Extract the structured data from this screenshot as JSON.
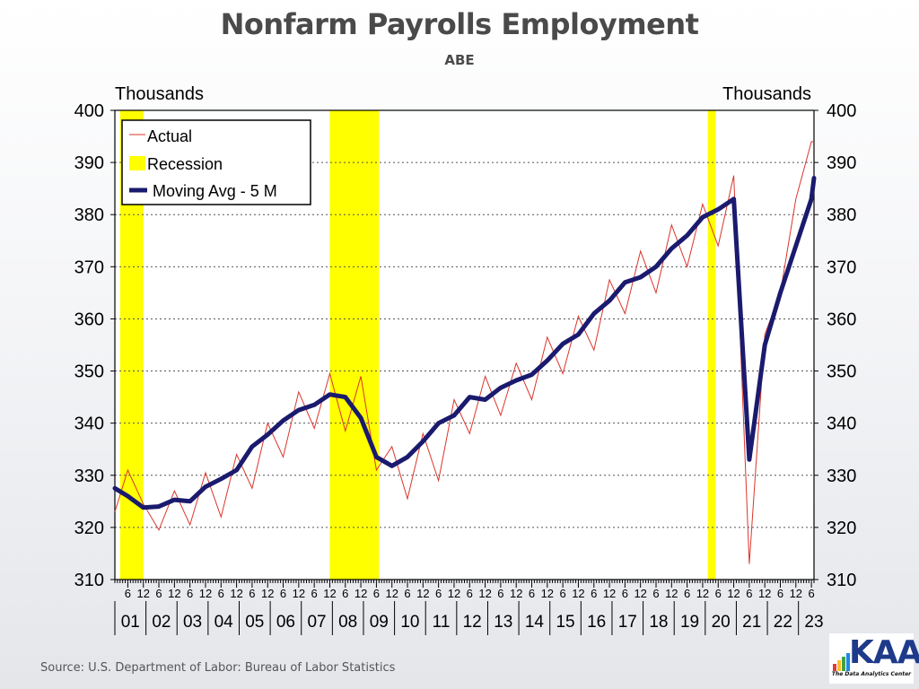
{
  "header": {
    "title": "Nonfarm Payrolls Employment",
    "subtitle": "ABE"
  },
  "footer": {
    "source": "Source:  U.S. Department of Labor: Bureau of Labor Statistics"
  },
  "logo": {
    "text": "KAA",
    "tagline": "The Data Analytics Center",
    "bar_colors": [
      "#e53935",
      "#fbc02d",
      "#43a047",
      "#1e88e5"
    ]
  },
  "colors": {
    "actual": "#d9362b",
    "moving_avg": "#1a1a6e",
    "recession": "#ffff00",
    "axis": "#000000",
    "grid": "#555555",
    "plot_bg": "#ffffff"
  },
  "chart_data": {
    "type": "line",
    "title": "Nonfarm Payrolls Employment",
    "subtitle": "ABE",
    "ylabel_left": "Thousands",
    "ylabel_right": "Thousands",
    "ylim": [
      310,
      400
    ],
    "y_ticks": [
      310,
      320,
      330,
      340,
      350,
      360,
      370,
      380,
      390,
      400
    ],
    "grid": "horizontal dotted",
    "legend_position": "top-left",
    "x_start": "2001-01",
    "x_end": "2023-07",
    "x_minor_tick_labels": [
      "6",
      "12"
    ],
    "x_year_labels": [
      "01",
      "02",
      "03",
      "04",
      "05",
      "06",
      "07",
      "08",
      "09",
      "10",
      "11",
      "12",
      "13",
      "14",
      "15",
      "16",
      "17",
      "18",
      "19",
      "20",
      "21",
      "22",
      "23"
    ],
    "legend": {
      "actual": "Actual",
      "recession": "Recession",
      "moving_avg": "Moving Avg - 5 M"
    },
    "recessions": [
      {
        "start": "2001-03",
        "end": "2001-11"
      },
      {
        "start": "2007-12",
        "end": "2009-06"
      },
      {
        "start": "2020-02",
        "end": "2020-04"
      }
    ],
    "series": [
      {
        "name": "Moving Avg - 5 M",
        "points": [
          [
            "2001-01",
            327.5
          ],
          [
            "2001-06",
            326.0
          ],
          [
            "2001-12",
            323.8
          ],
          [
            "2002-06",
            324.0
          ],
          [
            "2002-12",
            325.3
          ],
          [
            "2003-06",
            325.0
          ],
          [
            "2003-12",
            327.8
          ],
          [
            "2004-06",
            329.3
          ],
          [
            "2004-12",
            331.0
          ],
          [
            "2005-06",
            335.5
          ],
          [
            "2005-12",
            337.8
          ],
          [
            "2006-06",
            340.5
          ],
          [
            "2006-12",
            342.5
          ],
          [
            "2007-06",
            343.5
          ],
          [
            "2007-12",
            345.5
          ],
          [
            "2008-06",
            345.0
          ],
          [
            "2008-12",
            341.0
          ],
          [
            "2009-06",
            333.5
          ],
          [
            "2009-12",
            331.8
          ],
          [
            "2010-06",
            333.5
          ],
          [
            "2010-12",
            336.5
          ],
          [
            "2011-06",
            340.0
          ],
          [
            "2011-12",
            341.5
          ],
          [
            "2012-06",
            345.0
          ],
          [
            "2012-12",
            344.5
          ],
          [
            "2013-06",
            346.8
          ],
          [
            "2013-12",
            348.2
          ],
          [
            "2014-06",
            349.3
          ],
          [
            "2014-12",
            352.0
          ],
          [
            "2015-06",
            355.2
          ],
          [
            "2015-12",
            357.0
          ],
          [
            "2016-06",
            361.0
          ],
          [
            "2016-12",
            363.5
          ],
          [
            "2017-06",
            367.0
          ],
          [
            "2017-12",
            368.0
          ],
          [
            "2018-06",
            370.0
          ],
          [
            "2018-12",
            373.5
          ],
          [
            "2019-06",
            376.0
          ],
          [
            "2019-12",
            379.5
          ],
          [
            "2020-06",
            381.0
          ],
          [
            "2020-12",
            383.0
          ],
          [
            "2021-06",
            333.0
          ],
          [
            "2021-12",
            355.0
          ],
          [
            "2022-06",
            365.0
          ],
          [
            "2022-12",
            374.0
          ],
          [
            "2023-06",
            383.0
          ],
          [
            "2023-07",
            387.0
          ]
        ]
      },
      {
        "name": "Actual",
        "points": [
          [
            "2001-01",
            323.0
          ],
          [
            "2001-06",
            331.0
          ],
          [
            "2001-12",
            324.5
          ],
          [
            "2002-06",
            319.5
          ],
          [
            "2002-12",
            327.0
          ],
          [
            "2003-06",
            320.5
          ],
          [
            "2003-12",
            330.5
          ],
          [
            "2004-06",
            322.0
          ],
          [
            "2004-12",
            334.0
          ],
          [
            "2005-06",
            327.5
          ],
          [
            "2005-12",
            340.0
          ],
          [
            "2006-06",
            333.5
          ],
          [
            "2006-12",
            346.0
          ],
          [
            "2007-06",
            339.0
          ],
          [
            "2007-12",
            349.5
          ],
          [
            "2008-06",
            338.5
          ],
          [
            "2008-12",
            349.0
          ],
          [
            "2009-06",
            331.0
          ],
          [
            "2009-12",
            335.5
          ],
          [
            "2010-06",
            325.5
          ],
          [
            "2010-12",
            338.0
          ],
          [
            "2011-06",
            329.0
          ],
          [
            "2011-12",
            344.5
          ],
          [
            "2012-06",
            338.0
          ],
          [
            "2012-12",
            349.0
          ],
          [
            "2013-06",
            341.5
          ],
          [
            "2013-12",
            351.5
          ],
          [
            "2014-06",
            344.5
          ],
          [
            "2014-12",
            356.5
          ],
          [
            "2015-06",
            349.5
          ],
          [
            "2015-12",
            360.5
          ],
          [
            "2016-06",
            354.0
          ],
          [
            "2016-12",
            367.5
          ],
          [
            "2017-06",
            361.0
          ],
          [
            "2017-12",
            373.0
          ],
          [
            "2018-06",
            365.0
          ],
          [
            "2018-12",
            378.0
          ],
          [
            "2019-06",
            370.0
          ],
          [
            "2019-12",
            382.0
          ],
          [
            "2020-06",
            374.0
          ],
          [
            "2020-12",
            387.5
          ],
          [
            "2021-06",
            313.0
          ],
          [
            "2021-12",
            357.0
          ],
          [
            "2022-06",
            365.0
          ],
          [
            "2022-12",
            383.0
          ],
          [
            "2023-06",
            394.0
          ],
          [
            "2023-07",
            394.0
          ]
        ]
      }
    ]
  }
}
